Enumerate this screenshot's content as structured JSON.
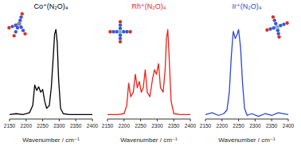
{
  "chart_data": [
    {
      "type": "line",
      "title": "Co⁺(N₂O)₄",
      "x_label": "Wavenumber / cm⁻¹",
      "color": "#000000",
      "x": [
        2150,
        2170,
        2190,
        2210,
        2220,
        2226,
        2232,
        2238,
        2244,
        2250,
        2256,
        2262,
        2270,
        2276,
        2282,
        2286,
        2290,
        2294,
        2298,
        2304,
        2312,
        2330,
        2360,
        2400
      ],
      "values": [
        0.05,
        0.06,
        0.05,
        0.07,
        0.15,
        0.38,
        0.32,
        0.36,
        0.3,
        0.33,
        0.2,
        0.12,
        0.15,
        0.35,
        0.7,
        0.95,
        1.0,
        0.85,
        0.45,
        0.12,
        0.06,
        0.05,
        0.05,
        0.05
      ],
      "xlim": [
        2150,
        2400
      ],
      "xticks": [
        2150,
        2200,
        2250,
        2300,
        2350,
        2400
      ],
      "ylim": [
        0,
        1.1
      ],
      "tick_labels": "x"
    },
    {
      "type": "line",
      "title": "Rh⁺(N₂O)₄",
      "x_label": "Wavenumber / cm⁻¹",
      "color": "#e8231b",
      "x": [
        2150,
        2180,
        2200,
        2208,
        2214,
        2220,
        2228,
        2234,
        2240,
        2246,
        2252,
        2258,
        2264,
        2270,
        2278,
        2286,
        2292,
        2298,
        2304,
        2310,
        2318,
        2324,
        2328,
        2332,
        2336,
        2342,
        2350,
        2370,
        2400
      ],
      "values": [
        0.05,
        0.05,
        0.06,
        0.15,
        0.4,
        0.25,
        0.3,
        0.5,
        0.35,
        0.42,
        0.3,
        0.35,
        0.55,
        0.3,
        0.25,
        0.45,
        0.55,
        0.5,
        0.62,
        0.35,
        0.3,
        0.55,
        0.9,
        1.0,
        0.7,
        0.2,
        0.06,
        0.05,
        0.05
      ],
      "xlim": [
        2150,
        2400
      ],
      "xticks": [
        2150,
        2200,
        2250,
        2300,
        2350,
        2400
      ],
      "ylim": [
        0,
        1.1
      ],
      "tick_labels": "x"
    },
    {
      "type": "line",
      "title": "Ir⁺(N₂O)₄",
      "x_label": "Wavenumber / cm⁻¹",
      "color": "#2a47d6",
      "x": [
        2150,
        2170,
        2190,
        2205,
        2215,
        2222,
        2228,
        2234,
        2240,
        2246,
        2250,
        2256,
        2262,
        2268,
        2276,
        2290,
        2310,
        2330,
        2350,
        2370,
        2400
      ],
      "values": [
        0.05,
        0.07,
        0.04,
        0.06,
        0.1,
        0.3,
        0.7,
        0.98,
        0.9,
        0.95,
        1.0,
        0.8,
        0.4,
        0.12,
        0.04,
        0.06,
        0.03,
        0.06,
        0.04,
        0.07,
        0.05
      ],
      "xlim": [
        2150,
        2400
      ],
      "xticks": [
        2150,
        2200,
        2250,
        2300,
        2350,
        2400
      ],
      "ylim": [
        0,
        1.1
      ],
      "tick_labels": "x"
    }
  ]
}
